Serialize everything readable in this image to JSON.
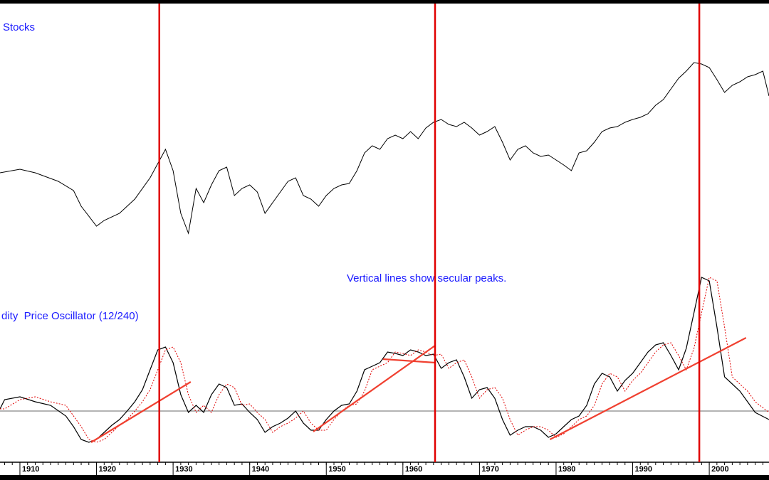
{
  "chart_data": {
    "type": "line",
    "title": "Stocks",
    "subtitle": "dity  Price Oscillator (12/240)",
    "annotation": "Vertical lines show secular peaks.",
    "xlim": [
      1907.4,
      2007.8
    ],
    "xticks": [
      1910,
      1920,
      1930,
      1940,
      1950,
      1960,
      1970,
      1980,
      1990,
      2000
    ],
    "peaks": [
      1928.2,
      1964.2,
      1998.7
    ],
    "peak_color": "#e00000",
    "stocks": {
      "ylim": [
        0,
        400
      ],
      "color": "#000000",
      "x": [
        1907.4,
        1910,
        1912,
        1915,
        1917,
        1918,
        1920,
        1921,
        1923,
        1925,
        1927,
        1929,
        1930,
        1931,
        1932,
        1933,
        1934,
        1935,
        1936,
        1937,
        1938,
        1939,
        1940,
        1941,
        1942,
        1943,
        1944,
        1945,
        1946,
        1947,
        1948,
        1949,
        1950,
        1951,
        1952,
        1953,
        1954,
        1955,
        1956,
        1957,
        1958,
        1959,
        1960,
        1961,
        1962,
        1963,
        1964,
        1965,
        1966,
        1967,
        1968,
        1969,
        1970,
        1971,
        1972,
        1973,
        1974,
        1975,
        1976,
        1977,
        1978,
        1979,
        1980,
        1981,
        1982,
        1983,
        1984,
        1985,
        1986,
        1987,
        1988,
        1989,
        1990,
        1991,
        1992,
        1993,
        1994,
        1995,
        1996,
        1997,
        1998,
        1999,
        2000,
        2001,
        2002,
        2003,
        2004,
        2005,
        2006,
        2007,
        2007.8
      ],
      "values": [
        157,
        162,
        157,
        145,
        132,
        110,
        82,
        90,
        100,
        120,
        150,
        190,
        160,
        100,
        72,
        135,
        115,
        140,
        160,
        165,
        125,
        135,
        140,
        130,
        100,
        115,
        130,
        145,
        150,
        125,
        120,
        110,
        125,
        135,
        140,
        142,
        160,
        185,
        195,
        190,
        205,
        210,
        205,
        215,
        205,
        220,
        228,
        232,
        225,
        222,
        228,
        220,
        210,
        215,
        222,
        200,
        175,
        190,
        195,
        185,
        180,
        182,
        175,
        168,
        160,
        185,
        188,
        200,
        215,
        220,
        222,
        228,
        232,
        235,
        240,
        252,
        260,
        275,
        290,
        300,
        312,
        310,
        305,
        288,
        270,
        280,
        285,
        292,
        295,
        300,
        265
      ]
    },
    "oscillator": {
      "ylim": [
        -72,
        208
      ],
      "reference_line": 0,
      "reference_color": "#888888",
      "x": [
        1907.4,
        1908,
        1910,
        1912,
        1914,
        1916,
        1917,
        1918,
        1919,
        1920,
        1921,
        1922,
        1923,
        1924,
        1925,
        1926,
        1927,
        1928,
        1929,
        1930,
        1931,
        1932,
        1933,
        1934,
        1935,
        1936,
        1937,
        1938,
        1939,
        1940,
        1941,
        1942,
        1943,
        1944,
        1945,
        1946,
        1947,
        1948,
        1949,
        1950,
        1951,
        1952,
        1953,
        1954,
        1955,
        1956,
        1957,
        1958,
        1959,
        1960,
        1961,
        1962,
        1963,
        1964,
        1965,
        1966,
        1967,
        1968,
        1969,
        1970,
        1971,
        1972,
        1973,
        1974,
        1975,
        1976,
        1977,
        1978,
        1979,
        1980,
        1981,
        1982,
        1983,
        1984,
        1985,
        1986,
        1987,
        1988,
        1989,
        1990,
        1991,
        1992,
        1993,
        1994,
        1995,
        1996,
        1997,
        1998,
        1999,
        2000,
        2001,
        2002,
        2003,
        2004,
        2005,
        2006,
        2007.8
      ],
      "series": [
        {
          "color": "#000000",
          "values": [
            3,
            16,
            20,
            13,
            8,
            -7,
            -22,
            -40,
            -44,
            -40,
            -30,
            -20,
            -12,
            0,
            13,
            30,
            58,
            86,
            90,
            68,
            23,
            -2,
            8,
            -2,
            23,
            38,
            33,
            8,
            10,
            -2,
            -12,
            -30,
            -22,
            -17,
            -10,
            0,
            -17,
            -27,
            -27,
            -12,
            0,
            8,
            10,
            28,
            58,
            63,
            68,
            83,
            81,
            78,
            86,
            83,
            78,
            80,
            60,
            68,
            72,
            48,
            18,
            30,
            33,
            18,
            -12,
            -34,
            -27,
            -22,
            -22,
            -27,
            -37,
            -32,
            -22,
            -12,
            -7,
            8,
            38,
            53,
            48,
            28,
            43,
            53,
            68,
            83,
            93,
            96,
            78,
            58,
            88,
            138,
            188,
            183,
            118,
            48,
            38,
            28,
            13,
            -2,
            -12
          ]
        },
        {
          "color": "#e00000",
          "dashed": true,
          "values": [
            3,
            3,
            16,
            20,
            13,
            8,
            -7,
            -22,
            -40,
            -44,
            -40,
            -30,
            -20,
            -12,
            0,
            13,
            30,
            58,
            86,
            90,
            68,
            23,
            -2,
            8,
            -2,
            23,
            38,
            33,
            8,
            10,
            -2,
            -12,
            -30,
            -22,
            -17,
            -10,
            0,
            -17,
            -27,
            -27,
            -12,
            0,
            8,
            10,
            28,
            58,
            63,
            68,
            83,
            81,
            78,
            86,
            83,
            78,
            80,
            60,
            68,
            72,
            48,
            18,
            30,
            33,
            18,
            -12,
            -34,
            -27,
            -22,
            -22,
            -27,
            -37,
            -32,
            -22,
            -12,
            -7,
            8,
            38,
            53,
            48,
            28,
            43,
            53,
            68,
            83,
            93,
            96,
            78,
            58,
            88,
            138,
            188,
            183,
            118,
            48,
            38,
            28,
            13,
            -2
          ]
        }
      ],
      "trendline_color": "#f04030",
      "trendlines": [
        {
          "x": [
            1919.3,
            1932.3
          ],
          "y": [
            -44,
            41
          ]
        },
        {
          "x": [
            1948.3,
            1964.2
          ],
          "y": [
            -29,
            92
          ]
        },
        {
          "x": [
            1957.4,
            1964.2
          ],
          "y": [
            73,
            68
          ]
        },
        {
          "x": [
            1979.2,
            2004.8
          ],
          "y": [
            -40,
            103
          ]
        }
      ]
    }
  }
}
